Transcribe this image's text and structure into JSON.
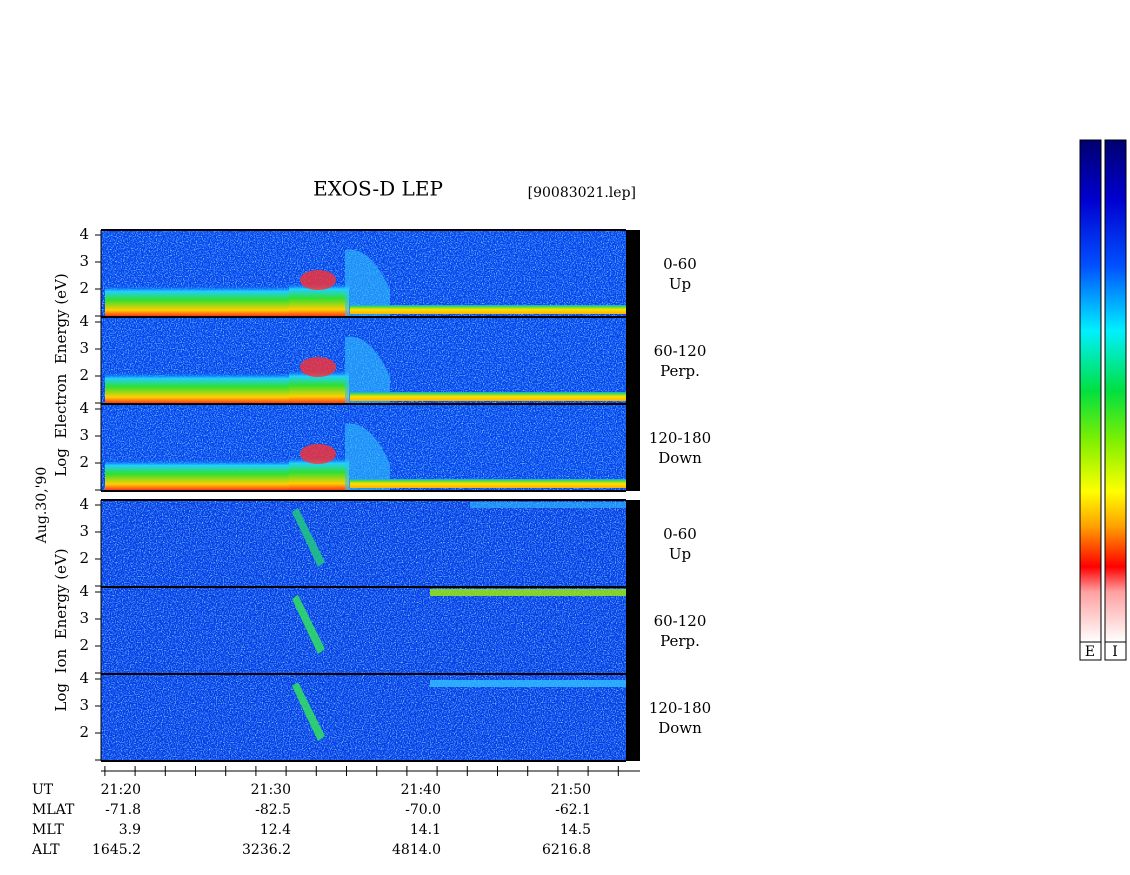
{
  "header": {
    "title": "EXOS-D LEP",
    "file": "[90083021.lep]"
  },
  "date": "Aug.30,'90",
  "axis_labels": {
    "electron": "Log  Electron  Energy (eV)",
    "ion": "Log  Ion  Energy (eV)"
  },
  "panels": [
    {
      "yticks": [
        4,
        3,
        2
      ],
      "range": "0-60",
      "direction": "Up"
    },
    {
      "yticks": [
        4,
        3,
        2
      ],
      "range": "60-120",
      "direction": "Perp."
    },
    {
      "yticks": [
        4,
        3,
        2
      ],
      "range": "120-180",
      "direction": "Down"
    },
    {
      "yticks": [
        4,
        3,
        2
      ],
      "range": "0-60",
      "direction": "Up"
    },
    {
      "yticks": [
        4,
        3,
        2
      ],
      "range": "60-120",
      "direction": "Perp."
    },
    {
      "yticks": [
        4,
        3,
        2
      ],
      "range": "120-180",
      "direction": "Down"
    }
  ],
  "orbit": {
    "labels": [
      "UT",
      "MLAT",
      "MLT",
      "ALT"
    ],
    "columns": [
      [
        "21:20",
        "-71.8",
        "3.9",
        "1645.2"
      ],
      [
        "21:30",
        "-82.5",
        "12.4",
        "3236.2"
      ],
      [
        "21:40",
        "-70.0",
        "14.1",
        "4814.0"
      ],
      [
        "21:50",
        "-62.1",
        "14.5",
        "6216.8"
      ]
    ]
  },
  "colorbar": {
    "labels": [
      "E",
      "I"
    ]
  }
}
